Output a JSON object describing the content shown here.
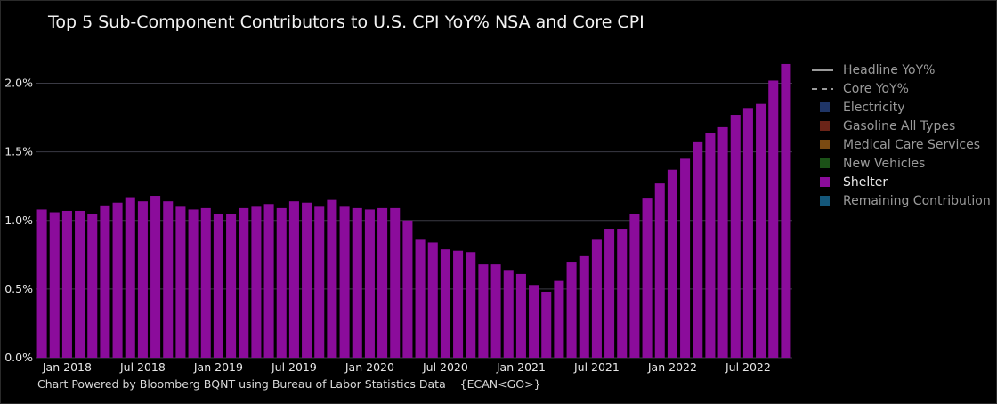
{
  "title": "Top 5 Sub-Component Contributors to U.S. CPI YoY% NSA and Core CPI",
  "footnote": "Chart Powered by Bloomberg BQNT using Bureau of Labor Statistics Data    {ECAN<GO>}",
  "colors": {
    "background": "#000000",
    "text": "#e6e6e6",
    "gridline": "#3a3a44",
    "shelter": "#8b0c9b"
  },
  "legend": [
    {
      "label": "Headline YoY%",
      "kind": "line-solid",
      "color": "#9a9a9a",
      "icon": "solid-line-icon"
    },
    {
      "label": "Core YoY%",
      "kind": "line-dashed",
      "color": "#9a9a9a",
      "icon": "dashed-line-icon"
    },
    {
      "label": "Electricity",
      "kind": "box",
      "color": "#1f3566",
      "icon": "square-icon"
    },
    {
      "label": "Gasoline All Types",
      "kind": "box",
      "color": "#6b2418",
      "icon": "square-icon"
    },
    {
      "label": "Medical Care Services",
      "kind": "box",
      "color": "#7a4a12",
      "icon": "square-icon"
    },
    {
      "label": "New Vehicles",
      "kind": "box",
      "color": "#1b5217",
      "icon": "square-icon"
    },
    {
      "label": "Shelter",
      "kind": "box",
      "color": "#8b0c9b",
      "icon": "square-icon",
      "active": true
    },
    {
      "label": "Remaining Contribution",
      "kind": "box",
      "color": "#14577a",
      "icon": "square-icon"
    }
  ],
  "chart_data": {
    "type": "bar",
    "series": [
      {
        "name": "Shelter",
        "x_start": "2017-11",
        "values": [
          1.08,
          1.06,
          1.07,
          1.07,
          1.05,
          1.11,
          1.13,
          1.17,
          1.14,
          1.18,
          1.14,
          1.1,
          1.08,
          1.09,
          1.05,
          1.05,
          1.09,
          1.1,
          1.12,
          1.09,
          1.14,
          1.13,
          1.1,
          1.15,
          1.1,
          1.09,
          1.08,
          1.09,
          1.09,
          1.0,
          0.86,
          0.84,
          0.79,
          0.78,
          0.77,
          0.68,
          0.68,
          0.64,
          0.61,
          0.53,
          0.48,
          0.56,
          0.7,
          0.74,
          0.86,
          0.94,
          0.94,
          1.05,
          1.16,
          1.27,
          1.37,
          1.45,
          1.57,
          1.64,
          1.68,
          1.77,
          1.82,
          1.85,
          2.02,
          2.14
        ]
      }
    ],
    "x_ticks": [
      "Jan 2018",
      "Jul 2018",
      "Jan 2019",
      "Jul 2019",
      "Jan 2020",
      "Jul 2020",
      "Jan 2021",
      "Jul 2021",
      "Jan 2022",
      "Jul 2022"
    ],
    "y_ticks": [
      "0.0%",
      "0.5%",
      "1.0%",
      "1.5%",
      "2.0%"
    ],
    "ylim": [
      0,
      2.25
    ],
    "grid": true,
    "legend_position": "right"
  }
}
